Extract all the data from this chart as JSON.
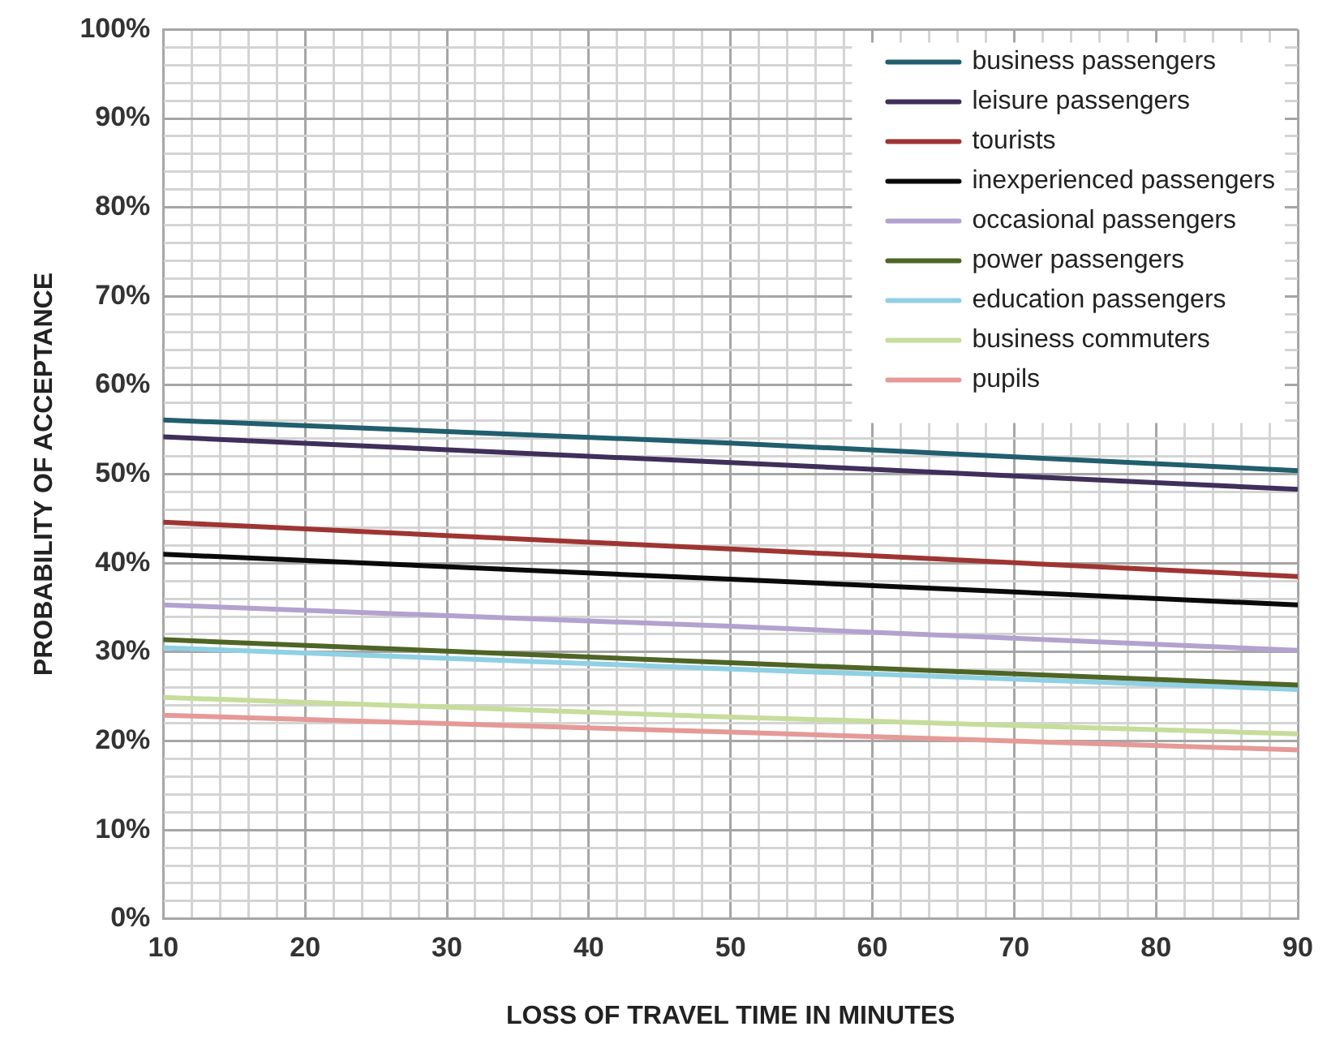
{
  "chart_data": {
    "type": "line",
    "xlabel": "LOSS OF TRAVEL TIME IN MINUTES",
    "ylabel": "PROBABILITY OF ACCEPTANCE",
    "xlim": [
      10,
      90
    ],
    "ylim": [
      0,
      100
    ],
    "xticks": [
      10,
      {
        "value": 12,
        "label": null
      },
      {
        "value": 14,
        "label": null
      },
      {
        "value": 16,
        "label": null
      },
      {
        "value": 18,
        "label": null
      },
      20,
      {
        "value": 22,
        "label": null
      },
      {
        "value": 24,
        "label": null
      },
      {
        "value": 26,
        "label": null
      },
      {
        "value": 28,
        "label": null
      },
      30,
      {
        "value": 32,
        "label": null
      },
      {
        "value": 34,
        "label": null
      },
      {
        "value": 36,
        "label": null
      },
      {
        "value": 38,
        "label": null
      },
      40,
      {
        "value": 42,
        "label": null
      },
      {
        "value": 44,
        "label": null
      },
      {
        "value": 46,
        "label": null
      },
      {
        "value": 48,
        "label": null
      },
      50,
      {
        "value": 52,
        "label": null
      },
      {
        "value": 54,
        "label": null
      },
      {
        "value": 56,
        "label": null
      },
      {
        "value": 58,
        "label": null
      },
      60,
      {
        "value": 62,
        "label": null
      },
      {
        "value": 64,
        "label": null
      },
      {
        "value": 66,
        "label": null
      },
      {
        "value": 68,
        "label": null
      },
      70,
      {
        "value": 72,
        "label": null
      },
      {
        "value": 74,
        "label": null
      },
      {
        "value": 76,
        "label": null
      },
      {
        "value": 78,
        "label": null
      },
      80,
      {
        "value": 82,
        "label": null
      },
      {
        "value": 84,
        "label": null
      },
      {
        "value": 86,
        "label": null
      },
      {
        "value": 88,
        "label": null
      },
      90
    ],
    "yticks": [
      {
        "value": 0,
        "label": "0%"
      },
      {
        "value": 2,
        "label": null
      },
      {
        "value": 4,
        "label": null
      },
      {
        "value": 6,
        "label": null
      },
      {
        "value": 8,
        "label": null
      },
      {
        "value": 10,
        "label": "10%"
      },
      {
        "value": 12,
        "label": null
      },
      {
        "value": 14,
        "label": null
      },
      {
        "value": 16,
        "label": null
      },
      {
        "value": 18,
        "label": null
      },
      {
        "value": 20,
        "label": "20%"
      },
      {
        "value": 22,
        "label": null
      },
      {
        "value": 24,
        "label": null
      },
      {
        "value": 26,
        "label": null
      },
      {
        "value": 28,
        "label": null
      },
      {
        "value": 30,
        "label": "30%"
      },
      {
        "value": 32,
        "label": null
      },
      {
        "value": 34,
        "label": null
      },
      {
        "value": 36,
        "label": null
      },
      {
        "value": 38,
        "label": null
      },
      {
        "value": 40,
        "label": "40%"
      },
      {
        "value": 42,
        "label": null
      },
      {
        "value": 44,
        "label": null
      },
      {
        "value": 46,
        "label": null
      },
      {
        "value": 48,
        "label": null
      },
      {
        "value": 50,
        "label": "50%"
      },
      {
        "value": 52,
        "label": null
      },
      {
        "value": 54,
        "label": null
      },
      {
        "value": 56,
        "label": null
      },
      {
        "value": 58,
        "label": null
      },
      {
        "value": 60,
        "label": "60%"
      },
      {
        "value": 62,
        "label": null
      },
      {
        "value": 64,
        "label": null
      },
      {
        "value": 66,
        "label": null
      },
      {
        "value": 68,
        "label": null
      },
      {
        "value": 70,
        "label": "70%"
      },
      {
        "value": 72,
        "label": null
      },
      {
        "value": 74,
        "label": null
      },
      {
        "value": 76,
        "label": null
      },
      {
        "value": 78,
        "label": null
      },
      {
        "value": 80,
        "label": "80%"
      },
      {
        "value": 82,
        "label": null
      },
      {
        "value": 84,
        "label": null
      },
      {
        "value": 86,
        "label": null
      },
      {
        "value": 88,
        "label": null
      },
      {
        "value": 90,
        "label": "90%"
      },
      {
        "value": 92,
        "label": null
      },
      {
        "value": 94,
        "label": null
      },
      {
        "value": 96,
        "label": null
      },
      {
        "value": 98,
        "label": null
      },
      {
        "value": 100,
        "label": "100%"
      }
    ],
    "grid": true,
    "legend": "top right",
    "marker": "none",
    "line_style": "solid",
    "series": [
      {
        "name": "business passengers",
        "color": "#215e6e",
        "x": [
          10,
          50,
          90
        ],
        "values": [
          56.1,
          53.5,
          50.4
        ]
      },
      {
        "name": "leisure passengers",
        "color": "#3f2f5a",
        "x": [
          10,
          50,
          90
        ],
        "values": [
          54.2,
          51.3,
          48.3
        ]
      },
      {
        "name": "tourists",
        "color": "#9e3533",
        "x": [
          10,
          50,
          90
        ],
        "values": [
          44.6,
          41.6,
          38.5
        ]
      },
      {
        "name": "inexperienced passengers",
        "color": "#0a0a0a",
        "x": [
          10,
          50,
          90
        ],
        "values": [
          41.0,
          38.2,
          35.3
        ]
      },
      {
        "name": "occasional passengers",
        "color": "#b3a2cf",
        "x": [
          10,
          50,
          90
        ],
        "values": [
          35.3,
          32.9,
          30.2
        ]
      },
      {
        "name": "power passengers",
        "color": "#4e6526",
        "x": [
          10,
          50,
          90
        ],
        "values": [
          31.4,
          28.8,
          26.3
        ]
      },
      {
        "name": "education passengers",
        "color": "#8fd0e4",
        "x": [
          10,
          50,
          90
        ],
        "values": [
          30.5,
          28.1,
          25.8
        ]
      },
      {
        "name": "business commuters",
        "color": "#c6dd9c",
        "x": [
          10,
          50,
          90
        ],
        "values": [
          24.9,
          22.7,
          20.8
        ]
      },
      {
        "name": "pupils",
        "color": "#e59a98",
        "x": [
          10,
          50,
          90
        ],
        "values": [
          22.9,
          21.0,
          19.0
        ]
      }
    ]
  }
}
